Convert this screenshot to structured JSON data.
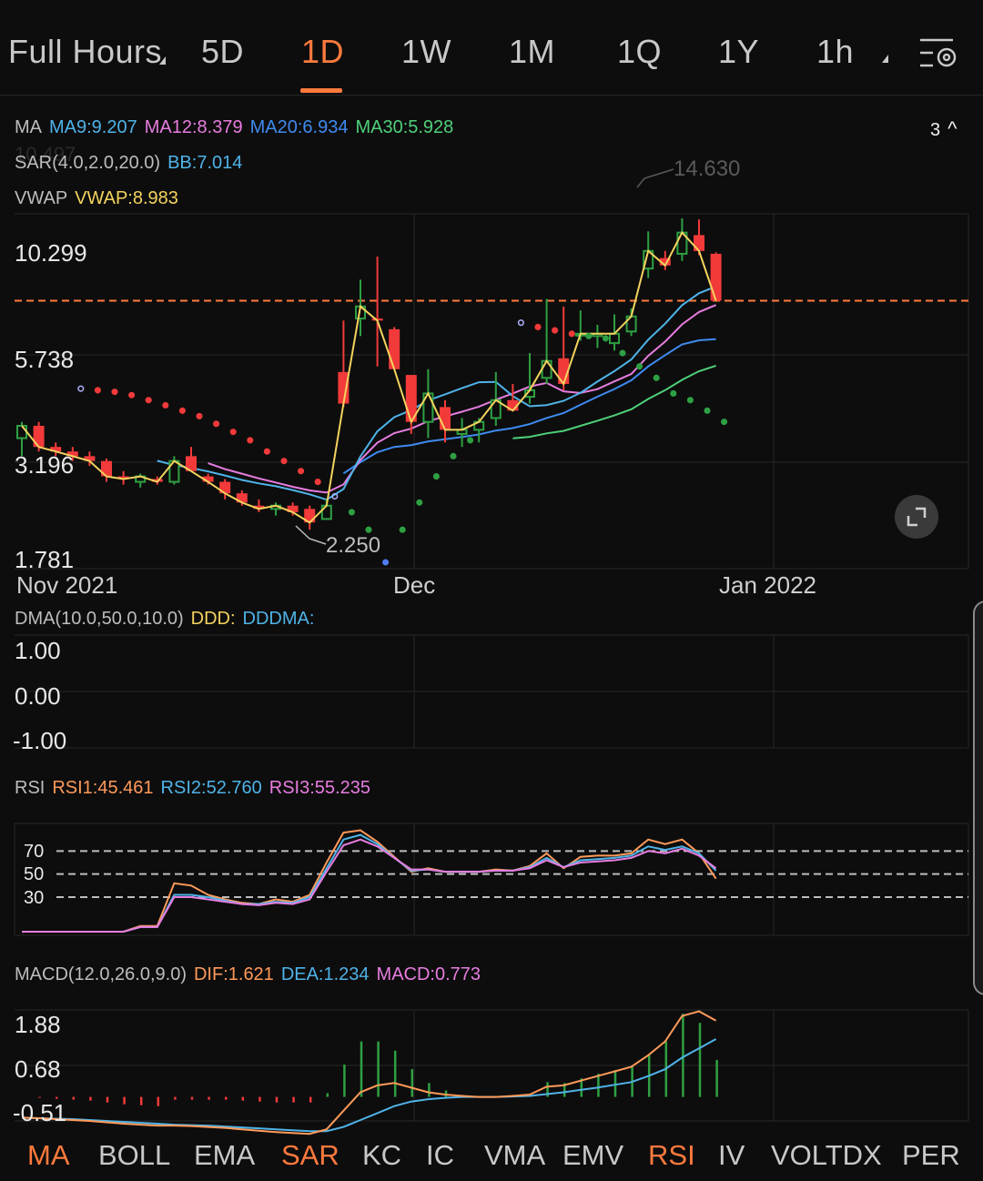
{
  "top_tabs": {
    "full_hours": "Full Hours",
    "items": [
      "5D",
      "1D",
      "1W",
      "1M",
      "1Q",
      "1Y",
      "1h"
    ],
    "active": "1D"
  },
  "indicators": {
    "ma": {
      "label": "MA",
      "ma9": "MA9:9.207",
      "ma12": "MA12:8.379",
      "ma20": "MA20:6.934",
      "ma30": "MA30:5.928",
      "collapse": "3"
    },
    "sar": {
      "label": "SAR(4.0,2.0,20.0)",
      "bb": "BB:7.014"
    },
    "vwap": {
      "label": "VWAP",
      "value": "VWAP:8.983"
    },
    "dma": {
      "label": "DMA(10.0,50.0,10.0)",
      "ddd": "DDD:",
      "dddma": "DDDMA:"
    },
    "rsi": {
      "label": "RSI",
      "rsi1": "RSI1:45.461",
      "rsi2": "RSI2:52.760",
      "rsi3": "RSI3:55.235"
    },
    "macd": {
      "label": "MACD(12.0,26.0,9.0)",
      "dif": "DIF:1.621",
      "dea": "DEA:1.234",
      "macd": "MACD:0.773"
    }
  },
  "price_axis": [
    "10.299",
    "5.738",
    "3.196",
    "1.781"
  ],
  "price_annotations": {
    "high": "14.630",
    "low": "2.250",
    "faint_text": "10.497"
  },
  "date_axis": [
    "Nov 2021",
    "Dec",
    "Jan 2022"
  ],
  "dma_axis": [
    "1.00",
    "0.00",
    "-1.00"
  ],
  "rsi_axis": [
    "70",
    "50",
    "30"
  ],
  "macd_axis": [
    "1.88",
    "0.68",
    "-0.51"
  ],
  "bottom_tabs": {
    "items": [
      "MA",
      "BOLL",
      "EMA",
      "SAR",
      "KC",
      "IC",
      "VMA",
      "EMV",
      "RSI",
      "IV",
      "VOLTDX",
      "PER"
    ],
    "active": [
      "MA",
      "SAR",
      "RSI"
    ]
  },
  "colors": {
    "orange": "#ff7a3d",
    "ma9": "#4fb3e8",
    "ma12": "#e77de0",
    "ma20": "#3f8bf0",
    "ma30": "#4fd07a",
    "vwap": "#f4d35e",
    "up": "#2ea043",
    "down": "#f23a3a"
  },
  "chart_data": [
    {
      "type": "candlestick",
      "title": "",
      "x_axis_labels": [
        "Nov 2021",
        "Dec",
        "Jan 2022"
      ],
      "y_axis_labels": [
        10.299,
        5.738,
        3.196,
        1.781
      ],
      "reference_line": 8.9,
      "high_marker": 14.63,
      "low_marker": 2.25,
      "candles": [
        {
          "o": 3.9,
          "h": 4.3,
          "l": 3.5,
          "c": 4.2
        },
        {
          "o": 4.2,
          "h": 4.3,
          "l": 3.6,
          "c": 3.7
        },
        {
          "o": 3.7,
          "h": 3.8,
          "l": 3.5,
          "c": 3.6
        },
        {
          "o": 3.6,
          "h": 3.7,
          "l": 3.4,
          "c": 3.5
        },
        {
          "o": 3.5,
          "h": 3.6,
          "l": 3.3,
          "c": 3.4
        },
        {
          "o": 3.4,
          "h": 3.45,
          "l": 3.0,
          "c": 3.1
        },
        {
          "o": 3.1,
          "h": 3.2,
          "l": 2.95,
          "c": 3.05
        },
        {
          "o": 3.0,
          "h": 3.15,
          "l": 2.9,
          "c": 3.1
        },
        {
          "o": 3.05,
          "h": 3.1,
          "l": 2.95,
          "c": 3.0
        },
        {
          "o": 3.0,
          "h": 3.5,
          "l": 2.95,
          "c": 3.4
        },
        {
          "o": 3.5,
          "h": 3.7,
          "l": 3.2,
          "c": 3.2
        },
        {
          "o": 3.1,
          "h": 3.15,
          "l": 2.95,
          "c": 3.0
        },
        {
          "o": 3.0,
          "h": 3.05,
          "l": 2.7,
          "c": 2.8
        },
        {
          "o": 2.8,
          "h": 2.85,
          "l": 2.6,
          "c": 2.65
        },
        {
          "o": 2.6,
          "h": 2.7,
          "l": 2.5,
          "c": 2.55
        },
        {
          "o": 2.55,
          "h": 2.65,
          "l": 2.45,
          "c": 2.6
        },
        {
          "o": 2.6,
          "h": 2.65,
          "l": 2.45,
          "c": 2.5
        },
        {
          "o": 2.55,
          "h": 2.6,
          "l": 2.25,
          "c": 2.35
        },
        {
          "o": 2.4,
          "h": 2.7,
          "l": 2.4,
          "c": 2.6
        },
        {
          "o": 5.8,
          "h": 7.9,
          "l": 4.7,
          "c": 4.8
        },
        {
          "o": 8.0,
          "h": 10.1,
          "l": 7.2,
          "c": 8.6
        },
        {
          "o": 8.0,
          "h": 11.6,
          "l": 6.0,
          "c": 7.9
        },
        {
          "o": 7.5,
          "h": 7.6,
          "l": 5.9,
          "c": 5.9
        },
        {
          "o": 5.7,
          "h": 5.7,
          "l": 4.0,
          "c": 4.3
        },
        {
          "o": 4.3,
          "h": 5.9,
          "l": 3.9,
          "c": 5.1
        },
        {
          "o": 4.7,
          "h": 4.9,
          "l": 3.8,
          "c": 4.1
        },
        {
          "o": 4.0,
          "h": 4.4,
          "l": 3.7,
          "c": 4.1
        },
        {
          "o": 4.1,
          "h": 4.4,
          "l": 3.8,
          "c": 4.3
        },
        {
          "o": 4.4,
          "h": 5.8,
          "l": 4.2,
          "c": 4.9
        },
        {
          "o": 4.9,
          "h": 5.4,
          "l": 4.6,
          "c": 4.6
        },
        {
          "o": 5.0,
          "h": 6.5,
          "l": 4.8,
          "c": 5.2
        },
        {
          "o": 5.6,
          "h": 9.0,
          "l": 5.4,
          "c": 6.2
        },
        {
          "o": 6.3,
          "h": 8.6,
          "l": 5.2,
          "c": 5.4
        },
        {
          "o": 7.3,
          "h": 8.4,
          "l": 7.0,
          "c": 7.3
        },
        {
          "o": 7.2,
          "h": 7.7,
          "l": 6.7,
          "c": 7.3
        },
        {
          "o": 6.9,
          "h": 8.2,
          "l": 6.6,
          "c": 7.3
        },
        {
          "o": 7.4,
          "h": 8.5,
          "l": 7.2,
          "c": 8.1
        },
        {
          "o": 10.8,
          "h": 13.5,
          "l": 10.2,
          "c": 12.0
        },
        {
          "o": 11.5,
          "h": 12.0,
          "l": 10.7,
          "c": 11.0
        },
        {
          "o": 11.8,
          "h": 14.6,
          "l": 11.3,
          "c": 13.4
        },
        {
          "o": 13.2,
          "h": 14.5,
          "l": 11.7,
          "c": 12.0
        },
        {
          "o": 11.8,
          "h": 11.9,
          "l": 8.9,
          "c": 8.9
        }
      ]
    },
    {
      "type": "line",
      "title": "RSI",
      "y_axis_labels": [
        70,
        50,
        30
      ],
      "series": [
        {
          "name": "RSI1",
          "values": [
            0,
            0,
            0,
            0,
            0,
            0,
            0,
            5,
            5,
            42,
            40,
            32,
            28,
            25,
            24,
            28,
            26,
            32,
            60,
            86,
            88,
            78,
            65,
            52,
            55,
            52,
            52,
            52,
            54,
            53,
            57,
            68,
            55,
            65,
            66,
            66,
            68,
            80,
            76,
            80,
            68,
            46
          ]
        },
        {
          "name": "RSI2",
          "values": [
            0,
            0,
            0,
            0,
            0,
            0,
            0,
            4,
            4,
            32,
            32,
            30,
            27,
            24,
            24,
            26,
            25,
            30,
            55,
            80,
            84,
            76,
            64,
            53,
            54,
            52,
            52,
            52,
            53,
            53,
            56,
            64,
            56,
            62,
            63,
            64,
            66,
            74,
            71,
            74,
            68,
            53
          ]
        },
        {
          "name": "RSI3",
          "values": [
            0,
            0,
            0,
            0,
            0,
            0,
            0,
            4,
            4,
            30,
            30,
            28,
            26,
            24,
            23,
            25,
            24,
            28,
            52,
            75,
            80,
            74,
            64,
            54,
            54,
            52,
            52,
            52,
            53,
            53,
            55,
            62,
            56,
            60,
            61,
            62,
            64,
            70,
            68,
            72,
            66,
            55
          ]
        }
      ]
    },
    {
      "type": "bar",
      "title": "MACD",
      "y_axis_labels": [
        1.88,
        0.68,
        -0.51
      ],
      "series": [
        {
          "name": "DIF",
          "values": [
            -0.45,
            -0.46,
            -0.48,
            -0.5,
            -0.52,
            -0.55,
            -0.58,
            -0.6,
            -0.62,
            -0.62,
            -0.63,
            -0.65,
            -0.67,
            -0.7,
            -0.73,
            -0.76,
            -0.78,
            -0.8,
            -0.7,
            -0.3,
            0.1,
            0.25,
            0.3,
            0.2,
            0.1,
            0.05,
            0.02,
            0.0,
            0.0,
            0.02,
            0.05,
            0.22,
            0.25,
            0.35,
            0.45,
            0.55,
            0.65,
            0.9,
            1.2,
            1.75,
            1.85,
            1.65
          ]
        },
        {
          "name": "DEA",
          "values": [
            -0.45,
            -0.46,
            -0.47,
            -0.48,
            -0.5,
            -0.52,
            -0.54,
            -0.56,
            -0.58,
            -0.6,
            -0.61,
            -0.62,
            -0.64,
            -0.66,
            -0.68,
            -0.7,
            -0.72,
            -0.74,
            -0.74,
            -0.65,
            -0.5,
            -0.35,
            -0.2,
            -0.1,
            -0.05,
            -0.02,
            0.0,
            0.0,
            0.0,
            0.01,
            0.02,
            0.06,
            0.1,
            0.15,
            0.2,
            0.26,
            0.32,
            0.45,
            0.6,
            0.85,
            1.05,
            1.25
          ]
        },
        {
          "name": "MACD",
          "values": [
            0,
            -0.02,
            -0.04,
            -0.06,
            -0.08,
            -0.12,
            -0.16,
            -0.18,
            -0.2,
            -0.06,
            -0.06,
            -0.06,
            -0.06,
            -0.08,
            -0.1,
            -0.12,
            -0.12,
            -0.12,
            0.08,
            0.7,
            1.2,
            1.2,
            1.0,
            0.6,
            0.3,
            0.14,
            0.04,
            0.0,
            0.0,
            0.02,
            0.06,
            0.32,
            0.3,
            0.4,
            0.5,
            0.58,
            0.66,
            0.9,
            1.2,
            1.8,
            1.6,
            0.8
          ]
        }
      ]
    }
  ]
}
